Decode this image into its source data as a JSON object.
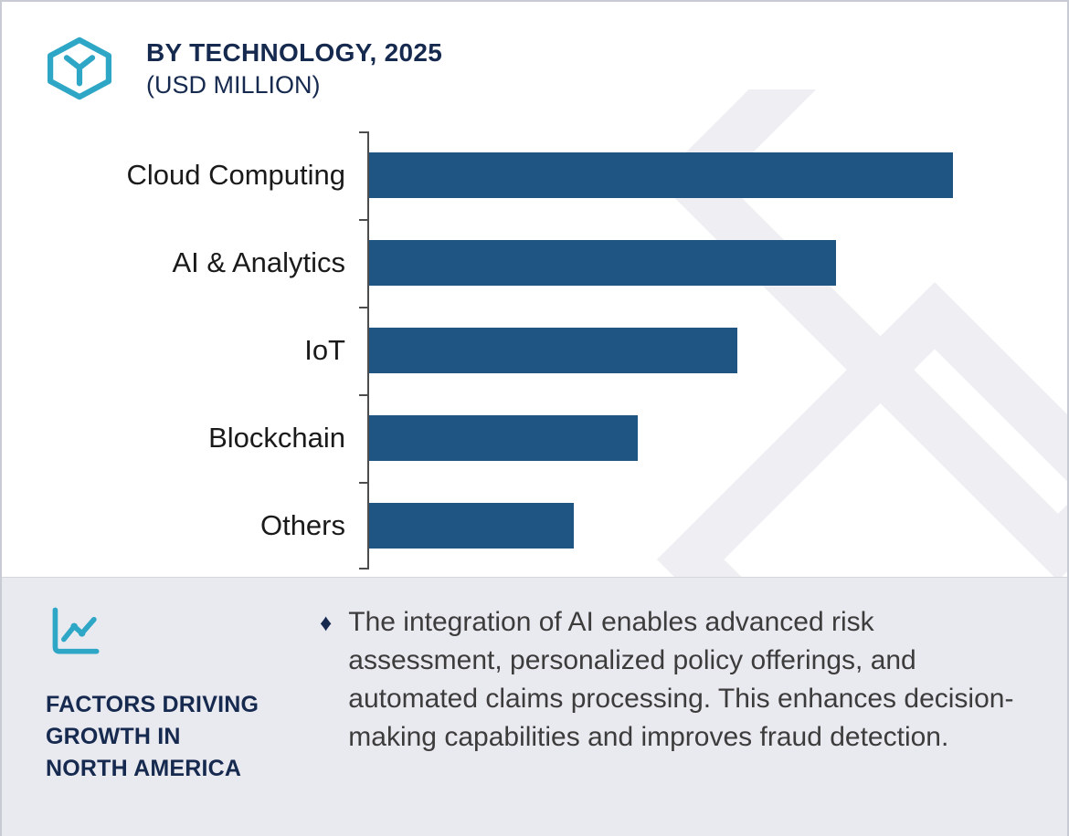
{
  "colors": {
    "bar": "#1F5582",
    "navy": "#16294E",
    "teal": "#2EA7C6",
    "footer_bg": "#E9E9F0",
    "axis": "#4D4D4D",
    "watermark": "#EEEEF3",
    "body_text": "#3C3C3C"
  },
  "header": {
    "title": "BY TECHNOLOGY, 2025",
    "subtitle": "(USD MILLION)",
    "logo_icon": "hexagon-y-logo-icon"
  },
  "chart_data": {
    "type": "bar",
    "orientation": "horizontal",
    "title": "BY TECHNOLOGY, 2025 (USD MILLION)",
    "categories": [
      "Cloud Computing",
      "AI & Analytics",
      "IoT",
      "Blockchain",
      "Others"
    ],
    "values": [
      100,
      80,
      63,
      46,
      35
    ],
    "xlim": [
      0,
      113
    ],
    "xlabel": "",
    "ylabel": "",
    "grid": false,
    "legend": false,
    "value_labels": false,
    "bar_color": "#1F5582"
  },
  "footer": {
    "icon": "line-chart-icon",
    "heading_lines": [
      "FACTORS DRIVING",
      "GROWTH IN",
      "NORTH AMERICA"
    ],
    "bullet_marker": "♦",
    "bullet_text": "The integration of AI enables advanced risk assessment, personalized policy offerings, and automated claims processing. This enhances decision-making capabilities and improves fraud detection."
  }
}
